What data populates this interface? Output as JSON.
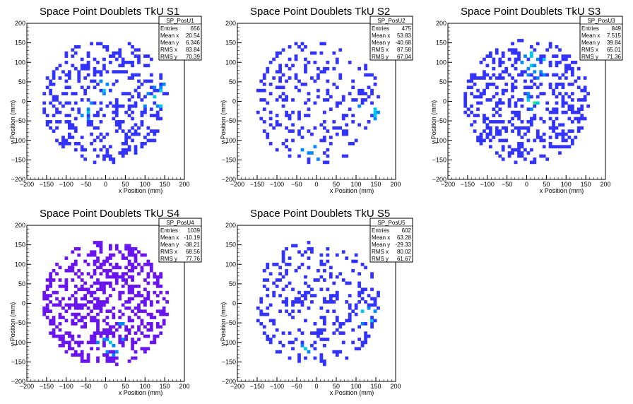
{
  "chart_data": [
    {
      "type": "heatmap",
      "title": "Space Point Doublets TkU S1",
      "xlabel": "x Position (mm)",
      "ylabel": "y Position (mm)",
      "xlim": [
        -200,
        200
      ],
      "ylim": [
        -200,
        200
      ],
      "xticks": [
        "−200",
        "−150",
        "−100",
        "−50",
        "0",
        "50",
        "100",
        "150",
        "200"
      ],
      "yticks": [
        "−200",
        "−150",
        "−100",
        "−50",
        "0",
        "50",
        "100",
        "150",
        "200"
      ],
      "stats": {
        "name": "SP_PosU1",
        "rows": [
          {
            "label": "Entries",
            "value": "656"
          },
          {
            "label": "Mean x",
            "value": "20.54"
          },
          {
            "label": "Mean y",
            "value": "6.346"
          },
          {
            "label": "RMS x",
            "value": "83.84"
          },
          {
            "label": "RMS y",
            "value": "70.39"
          }
        ]
      },
      "profile": {
        "seed": 11,
        "fill": 0.55,
        "hot": [
          [
            130,
            10,
            55
          ],
          [
            0,
            30,
            45
          ],
          [
            -50,
            -20,
            40
          ]
        ],
        "base_color": "#3333ff"
      }
    },
    {
      "type": "heatmap",
      "title": "Space Point Doublets TkU S2",
      "xlabel": "x Position (mm)",
      "ylabel": "y Position (mm)",
      "xlim": [
        -200,
        200
      ],
      "ylim": [
        -200,
        200
      ],
      "xticks": [
        "−200",
        "−150",
        "−100",
        "−50",
        "0",
        "50",
        "100",
        "150",
        "200"
      ],
      "yticks": [
        "−200",
        "−150",
        "−100",
        "−50",
        "0",
        "50",
        "100",
        "150",
        "200"
      ],
      "stats": {
        "name": "SP_PosU2",
        "rows": [
          {
            "label": "Entries",
            "value": "475"
          },
          {
            "label": "Mean x",
            "value": "53.83"
          },
          {
            "label": "Mean y",
            "value": "-40.68"
          },
          {
            "label": "RMS x",
            "value": "87.58"
          },
          {
            "label": "RMS y",
            "value": "67.04"
          }
        ]
      },
      "profile": {
        "seed": 23,
        "fill": 0.3,
        "hot": [
          [
            130,
            -30,
            45
          ],
          [
            -10,
            -130,
            40
          ]
        ],
        "base_color": "#3333ff"
      }
    },
    {
      "type": "heatmap",
      "title": "Space Point Doublets TkU S3",
      "xlabel": "x Position (mm)",
      "ylabel": "y Position (mm)",
      "xlim": [
        -200,
        200
      ],
      "ylim": [
        -200,
        200
      ],
      "xticks": [
        "−200",
        "−150",
        "−100",
        "−50",
        "0",
        "50",
        "100",
        "150",
        "200"
      ],
      "yticks": [
        "−200",
        "−150",
        "−100",
        "−50",
        "0",
        "50",
        "100",
        "150",
        "200"
      ],
      "stats": {
        "name": "SP_PosU3",
        "rows": [
          {
            "label": "Entries",
            "value": "849"
          },
          {
            "label": "Mean x",
            "value": "7.515"
          },
          {
            "label": "Mean y",
            "value": "39.84"
          },
          {
            "label": "RMS x",
            "value": "65.01"
          },
          {
            "label": "RMS y",
            "value": "71.36"
          }
        ]
      },
      "profile": {
        "seed": 37,
        "fill": 0.6,
        "hot": [
          [
            20,
            100,
            60
          ],
          [
            20,
            0,
            40
          ]
        ],
        "base_color": "#3333ff"
      }
    },
    {
      "type": "heatmap",
      "title": "Space Point Doublets TkU S4",
      "xlabel": "x Position (mm)",
      "ylabel": "y Position (mm)",
      "xlim": [
        -200,
        200
      ],
      "ylim": [
        -200,
        200
      ],
      "xticks": [
        "−200",
        "−150",
        "−100",
        "−50",
        "0",
        "50",
        "100",
        "150",
        "200"
      ],
      "yticks": [
        "−200",
        "−150",
        "−100",
        "−50",
        "0",
        "50",
        "100",
        "150",
        "200"
      ],
      "stats": {
        "name": "SP_PosU4",
        "rows": [
          {
            "label": "Entries",
            "value": "1039"
          },
          {
            "label": "Mean x",
            "value": "-10.19"
          },
          {
            "label": "Mean y",
            "value": "-38.21"
          },
          {
            "label": "RMS x",
            "value": "68.56"
          },
          {
            "label": "RMS y",
            "value": "77.76"
          }
        ]
      },
      "profile": {
        "seed": 53,
        "fill": 0.7,
        "hot": [
          [
            0,
            -110,
            45
          ],
          [
            40,
            -70,
            35
          ]
        ],
        "base_color": "#6a14f0"
      }
    },
    {
      "type": "heatmap",
      "title": "Space Point Doublets TkU S5",
      "xlabel": "x Position (mm)",
      "ylabel": "y Position (mm)",
      "xlim": [
        -200,
        200
      ],
      "ylim": [
        -200,
        200
      ],
      "xticks": [
        "−200",
        "−150",
        "−100",
        "−50",
        "0",
        "50",
        "100",
        "150",
        "200"
      ],
      "yticks": [
        "−200",
        "−150",
        "−100",
        "−50",
        "0",
        "50",
        "100",
        "150",
        "200"
      ],
      "stats": {
        "name": "SP_PosU5",
        "rows": [
          {
            "label": "Entries",
            "value": "602"
          },
          {
            "label": "Mean x",
            "value": "63.28"
          },
          {
            "label": "Mean y",
            "value": "-29.33"
          },
          {
            "label": "RMS x",
            "value": "80.02"
          },
          {
            "label": "RMS y",
            "value": "61.67"
          }
        ]
      },
      "profile": {
        "seed": 71,
        "fill": 0.4,
        "hot": [
          [
            130,
            -30,
            50
          ],
          [
            -40,
            -110,
            35
          ]
        ],
        "base_color": "#3333ff"
      }
    }
  ],
  "palette": [
    "#3333ff",
    "#0088ff",
    "#00c8e8",
    "#22e07a",
    "#c8f000",
    "#ff2a20"
  ]
}
